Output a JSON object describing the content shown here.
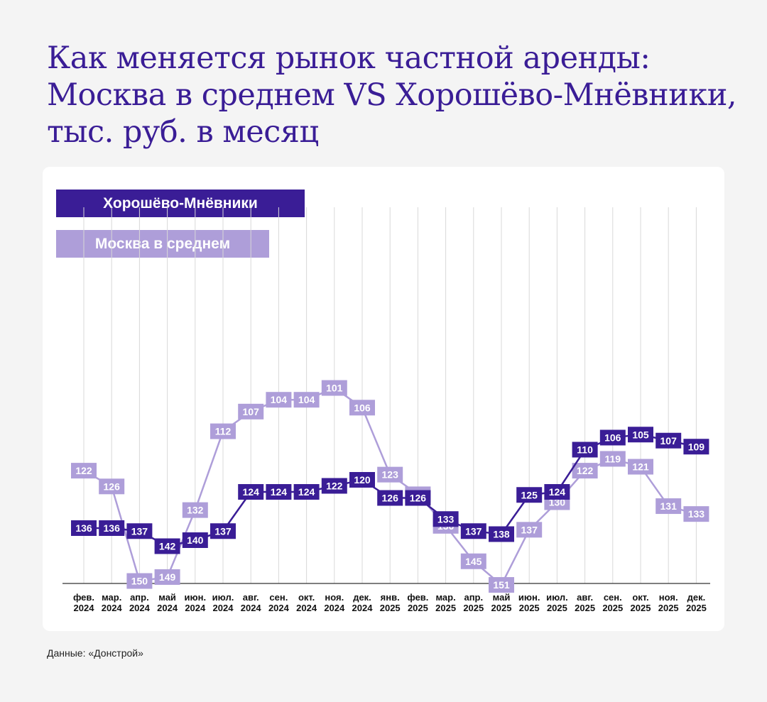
{
  "title": "Как меняется рынок частной аренды: Москва в среднем VS Хорошёво-Мнёвники, тыс. руб. в месяц",
  "source": "Данные: «Донстрой»",
  "colors": {
    "hm": "#3a1d96",
    "msk": "#ae9ed9",
    "grid": "#d8d8d8",
    "title": "#3a1d96"
  },
  "chart_data": {
    "type": "line",
    "categories": [
      [
        "фев.",
        "2024"
      ],
      [
        "мар.",
        "2024"
      ],
      [
        "апр.",
        "2024"
      ],
      [
        "май",
        "2024"
      ],
      [
        "июн.",
        "2024"
      ],
      [
        "июл.",
        "2024"
      ],
      [
        "авг.",
        "2024"
      ],
      [
        "сен.",
        "2024"
      ],
      [
        "окт.",
        "2024"
      ],
      [
        "ноя.",
        "2024"
      ],
      [
        "дек.",
        "2024"
      ],
      [
        "янв.",
        "2025"
      ],
      [
        "фев.",
        "2025"
      ],
      [
        "мар.",
        "2025"
      ],
      [
        "апр.",
        "2025"
      ],
      [
        "май",
        "2025"
      ],
      [
        "июн.",
        "2025"
      ],
      [
        "июл.",
        "2025"
      ],
      [
        "авг.",
        "2025"
      ],
      [
        "сен.",
        "2025"
      ],
      [
        "окт.",
        "2025"
      ],
      [
        "ноя.",
        "2025"
      ],
      [
        "дек.",
        "2025"
      ]
    ],
    "legend_position": "top-left",
    "grid": "vertical",
    "series": [
      {
        "name": "Хорошёво-Мнёвники",
        "color": "#3a1d96",
        "values": [
          136,
          136,
          137,
          142,
          140,
          137,
          124,
          124,
          124,
          122,
          120,
          126,
          126,
          133,
          137,
          138,
          125,
          124,
          110,
          106,
          105,
          107,
          109
        ]
      },
      {
        "name": "Москва в среднем",
        "color": "#ae9ed9",
        "values": [
          122,
          126,
          150,
          149,
          132,
          112,
          107,
          104,
          104,
          101,
          106,
          123,
          128,
          136,
          145,
          151,
          137,
          130,
          122,
          119,
          121,
          131,
          133
        ]
      }
    ]
  }
}
